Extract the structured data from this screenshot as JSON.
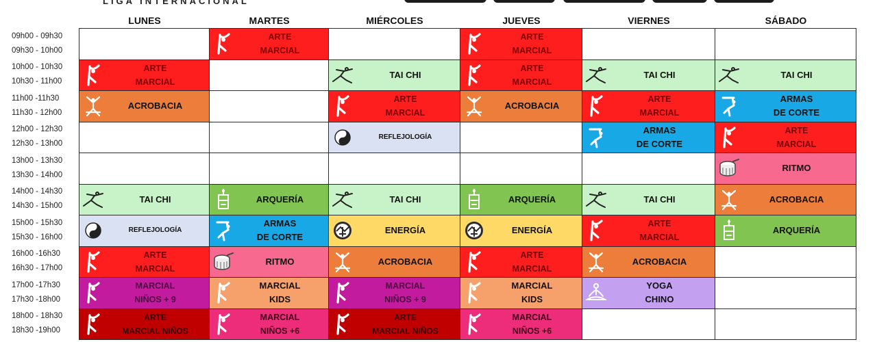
{
  "brand": "LIGA INTERNACIONAL",
  "days": [
    "LUNES",
    "MARTES",
    "MIÉRCOLES",
    "JUEVES",
    "VIERNES",
    "SÁBADO"
  ],
  "rows": [
    {
      "t1": "09h00 - 09h30",
      "t2": "09h30 - 10h00",
      "cells": [
        {
          "c": "empty"
        },
        {
          "c": "arte",
          "l1": "ARTE",
          "l2": "MARCIAL",
          "icon": "martial-icon"
        },
        {
          "c": "empty"
        },
        {
          "c": "arte",
          "l1": "ARTE",
          "l2": "MARCIAL",
          "icon": "martial-icon"
        },
        {
          "c": "empty"
        },
        {
          "c": "empty"
        }
      ]
    },
    {
      "t1": "10h00 - 10h30",
      "t2": "10h30 - 11h00",
      "cells": [
        {
          "c": "arte",
          "l1": "ARTE",
          "l2": "MARCIAL",
          "icon": "martial-icon"
        },
        {
          "c": "empty"
        },
        {
          "c": "taichi",
          "l1": "TAI CHI",
          "icon": "tai-chi-icon"
        },
        {
          "c": "arte",
          "l1": "ARTE",
          "l2": "MARCIAL",
          "icon": "martial-icon"
        },
        {
          "c": "taichi",
          "l1": "TAI CHI",
          "icon": "tai-chi-icon"
        },
        {
          "c": "taichi",
          "l1": "TAI CHI",
          "icon": "tai-chi-icon"
        }
      ]
    },
    {
      "t1": "11h00 -11h30",
      "t2": "11h30 - 12h00",
      "cells": [
        {
          "c": "acro",
          "l1": "ACROBACIA",
          "icon": "acrobat-icon"
        },
        {
          "c": "empty"
        },
        {
          "c": "arte",
          "l1": "ARTE",
          "l2": "MARCIAL",
          "icon": "martial-icon"
        },
        {
          "c": "acro",
          "l1": "ACROBACIA",
          "icon": "acrobat-icon"
        },
        {
          "c": "arte",
          "l1": "ARTE",
          "l2": "MARCIAL",
          "icon": "martial-icon"
        },
        {
          "c": "armas",
          "l1": "ARMAS",
          "l2": "DE CORTE",
          "icon": "sword-icon"
        }
      ]
    },
    {
      "t1": "12h00 - 12h30",
      "t2": "12h30 - 13h00",
      "cells": [
        {
          "c": "empty"
        },
        {
          "c": "empty"
        },
        {
          "c": "refl",
          "l1": "REFLEJOLOGÍA",
          "icon": "yin-yang-icon",
          "small": true
        },
        {
          "c": "empty"
        },
        {
          "c": "armas",
          "l1": "ARMAS",
          "l2": "DE CORTE",
          "icon": "sword-icon"
        },
        {
          "c": "arte",
          "l1": "ARTE",
          "l2": "MARCIAL",
          "icon": "martial-icon"
        }
      ]
    },
    {
      "t1": "13h00 - 13h30",
      "t2": "13h30 - 14h00",
      "cells": [
        {
          "c": "empty"
        },
        {
          "c": "empty"
        },
        {
          "c": "empty"
        },
        {
          "c": "empty"
        },
        {
          "c": "empty"
        },
        {
          "c": "ritmo",
          "l1": "RITMO",
          "icon": "drum-icon"
        }
      ]
    },
    {
      "t1": "14h00 - 14h30",
      "t2": "14h30 - 15h00",
      "cells": [
        {
          "c": "taichi",
          "l1": "TAI CHI",
          "icon": "tai-chi-icon"
        },
        {
          "c": "arq",
          "l1": "ARQUERÍA",
          "icon": "archer-icon"
        },
        {
          "c": "taichi",
          "l1": "TAI CHI",
          "icon": "tai-chi-icon"
        },
        {
          "c": "arq",
          "l1": "ARQUERÍA",
          "icon": "archer-icon"
        },
        {
          "c": "taichi",
          "l1": "TAI CHI",
          "icon": "tai-chi-icon"
        },
        {
          "c": "acro",
          "l1": "ACROBACIA",
          "icon": "acrobat-icon"
        }
      ]
    },
    {
      "t1": "15h00 - 15h30",
      "t2": "15h30 - 16h00",
      "cells": [
        {
          "c": "refl",
          "l1": "REFLEJOLOGÍA",
          "icon": "yin-yang-icon",
          "small": true
        },
        {
          "c": "armas",
          "l1": "ARMAS",
          "l2": "DE CORTE",
          "icon": "sword-icon"
        },
        {
          "c": "energia",
          "l1": "ENERGÍA",
          "icon": "energy-icon"
        },
        {
          "c": "energia",
          "l1": "ENERGÍA",
          "icon": "energy-icon"
        },
        {
          "c": "arte",
          "l1": "ARTE",
          "l2": "MARCIAL",
          "icon": "martial-icon"
        },
        {
          "c": "arq",
          "l1": "ARQUERÍA",
          "icon": "archer-icon"
        }
      ]
    },
    {
      "t1": "16h00 -16h30",
      "t2": "16h30 - 17h00",
      "cells": [
        {
          "c": "arte",
          "l1": "ARTE",
          "l2": "MARCIAL",
          "icon": "martial-icon"
        },
        {
          "c": "ritmo",
          "l1": "RITMO",
          "icon": "drum-icon"
        },
        {
          "c": "acro",
          "l1": "ACROBACIA",
          "icon": "acrobat-icon"
        },
        {
          "c": "arte",
          "l1": "ARTE",
          "l2": "MARCIAL",
          "icon": "martial-icon"
        },
        {
          "c": "acro",
          "l1": "ACROBACIA",
          "icon": "acrobat-icon"
        },
        {
          "c": "empty"
        }
      ]
    },
    {
      "t1": "17h00 -17h30",
      "t2": "17h30 -18h00",
      "cells": [
        {
          "c": "kidsm",
          "l1": "MARCIAL",
          "l2": "NIÑOS + 9",
          "icon": "martial-icon"
        },
        {
          "c": "kids",
          "l1": "MARCIAL",
          "l2": "KIDS",
          "icon": "martial-icon"
        },
        {
          "c": "kidsm",
          "l1": "MARCIAL",
          "l2": "NIÑOS + 9",
          "icon": "martial-icon"
        },
        {
          "c": "kids",
          "l1": "MARCIAL",
          "l2": "KIDS",
          "icon": "martial-icon"
        },
        {
          "c": "yoga",
          "l1": "YOGA",
          "l2": "CHINO",
          "icon": "meditation-icon"
        },
        {
          "c": "empty"
        }
      ]
    },
    {
      "t1": "18h00 - 18h30",
      "t2": "18h30 -19h00",
      "cells": [
        {
          "c": "ninos",
          "l1": "ARTE",
          "l2": "MARCIAL NIÑOS",
          "icon": "martial-icon"
        },
        {
          "c": "n6",
          "l1": "MARCIAL",
          "l2": "NIÑOS +6",
          "icon": "martial-icon"
        },
        {
          "c": "ninos",
          "l1": "ARTE",
          "l2": "MARCIAL NIÑOS",
          "icon": "martial-icon"
        },
        {
          "c": "n6",
          "l1": "MARCIAL",
          "l2": "NIÑOS +6",
          "icon": "martial-icon"
        },
        {
          "c": "empty"
        },
        {
          "c": "empty"
        }
      ]
    }
  ]
}
